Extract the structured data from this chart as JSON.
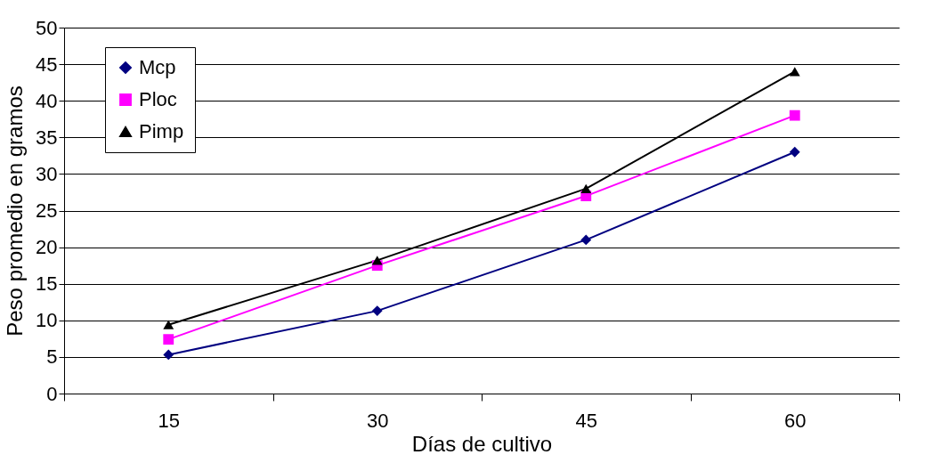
{
  "chart_data": {
    "type": "line",
    "xlabel": "Días de cultivo",
    "ylabel": "Peso promedio en gramos",
    "categories": [
      "15",
      "30",
      "45",
      "60"
    ],
    "series": [
      {
        "name": "Mcp",
        "color": "#000080",
        "marker": "diamond",
        "values": [
          5.3,
          11.3,
          21.0,
          33.0
        ]
      },
      {
        "name": "Ploc",
        "color": "#ff00ff",
        "marker": "square",
        "values": [
          7.4,
          17.5,
          27.0,
          38.0
        ]
      },
      {
        "name": "Pimp",
        "color": "#000000",
        "marker": "triangle",
        "values": [
          9.4,
          18.2,
          28.0,
          44.0
        ]
      }
    ],
    "ylim": [
      0,
      50
    ],
    "yticks": [
      0,
      5,
      10,
      15,
      20,
      25,
      30,
      35,
      40,
      45,
      50
    ],
    "grid": "y",
    "legend": "top left"
  }
}
